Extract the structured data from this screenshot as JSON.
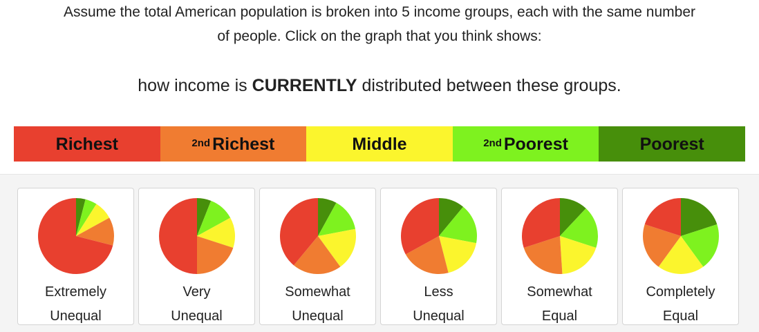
{
  "question": {
    "line1": "Assume the total American population is broken into 5 income groups, each with the same number",
    "line2": "of people. Click on the graph that you think shows:",
    "prompt_pre": "how income is ",
    "prompt_bold": "CURRENTLY",
    "prompt_post": " distributed between these groups."
  },
  "legend": [
    {
      "sup": "",
      "label": "Richest",
      "color": "#e8402f"
    },
    {
      "sup": "2nd",
      "label": "Richest",
      "color": "#f07c31"
    },
    {
      "sup": "",
      "label": "Middle",
      "color": "#fbf52d"
    },
    {
      "sup": "2nd",
      "label": "Poorest",
      "color": "#7ef21f"
    },
    {
      "sup": "",
      "label": "Poorest",
      "color": "#478f0b"
    }
  ],
  "options": [
    {
      "line1": "Extremely",
      "line2": "Unequal",
      "shares": [
        0.71,
        0.12,
        0.08,
        0.05,
        0.04
      ]
    },
    {
      "line1": "Very",
      "line2": "Unequal",
      "shares": [
        0.5,
        0.2,
        0.13,
        0.11,
        0.06
      ]
    },
    {
      "line1": "Somewhat",
      "line2": "Unequal",
      "shares": [
        0.39,
        0.21,
        0.18,
        0.14,
        0.08
      ]
    },
    {
      "line1": "Less",
      "line2": "Unequal",
      "shares": [
        0.33,
        0.21,
        0.18,
        0.17,
        0.11
      ]
    },
    {
      "line1": "Somewhat",
      "line2": "Equal",
      "shares": [
        0.3,
        0.21,
        0.19,
        0.18,
        0.12
      ]
    },
    {
      "line1": "Completely",
      "line2": "Equal",
      "shares": [
        0.2,
        0.2,
        0.2,
        0.2,
        0.2
      ]
    }
  ]
}
